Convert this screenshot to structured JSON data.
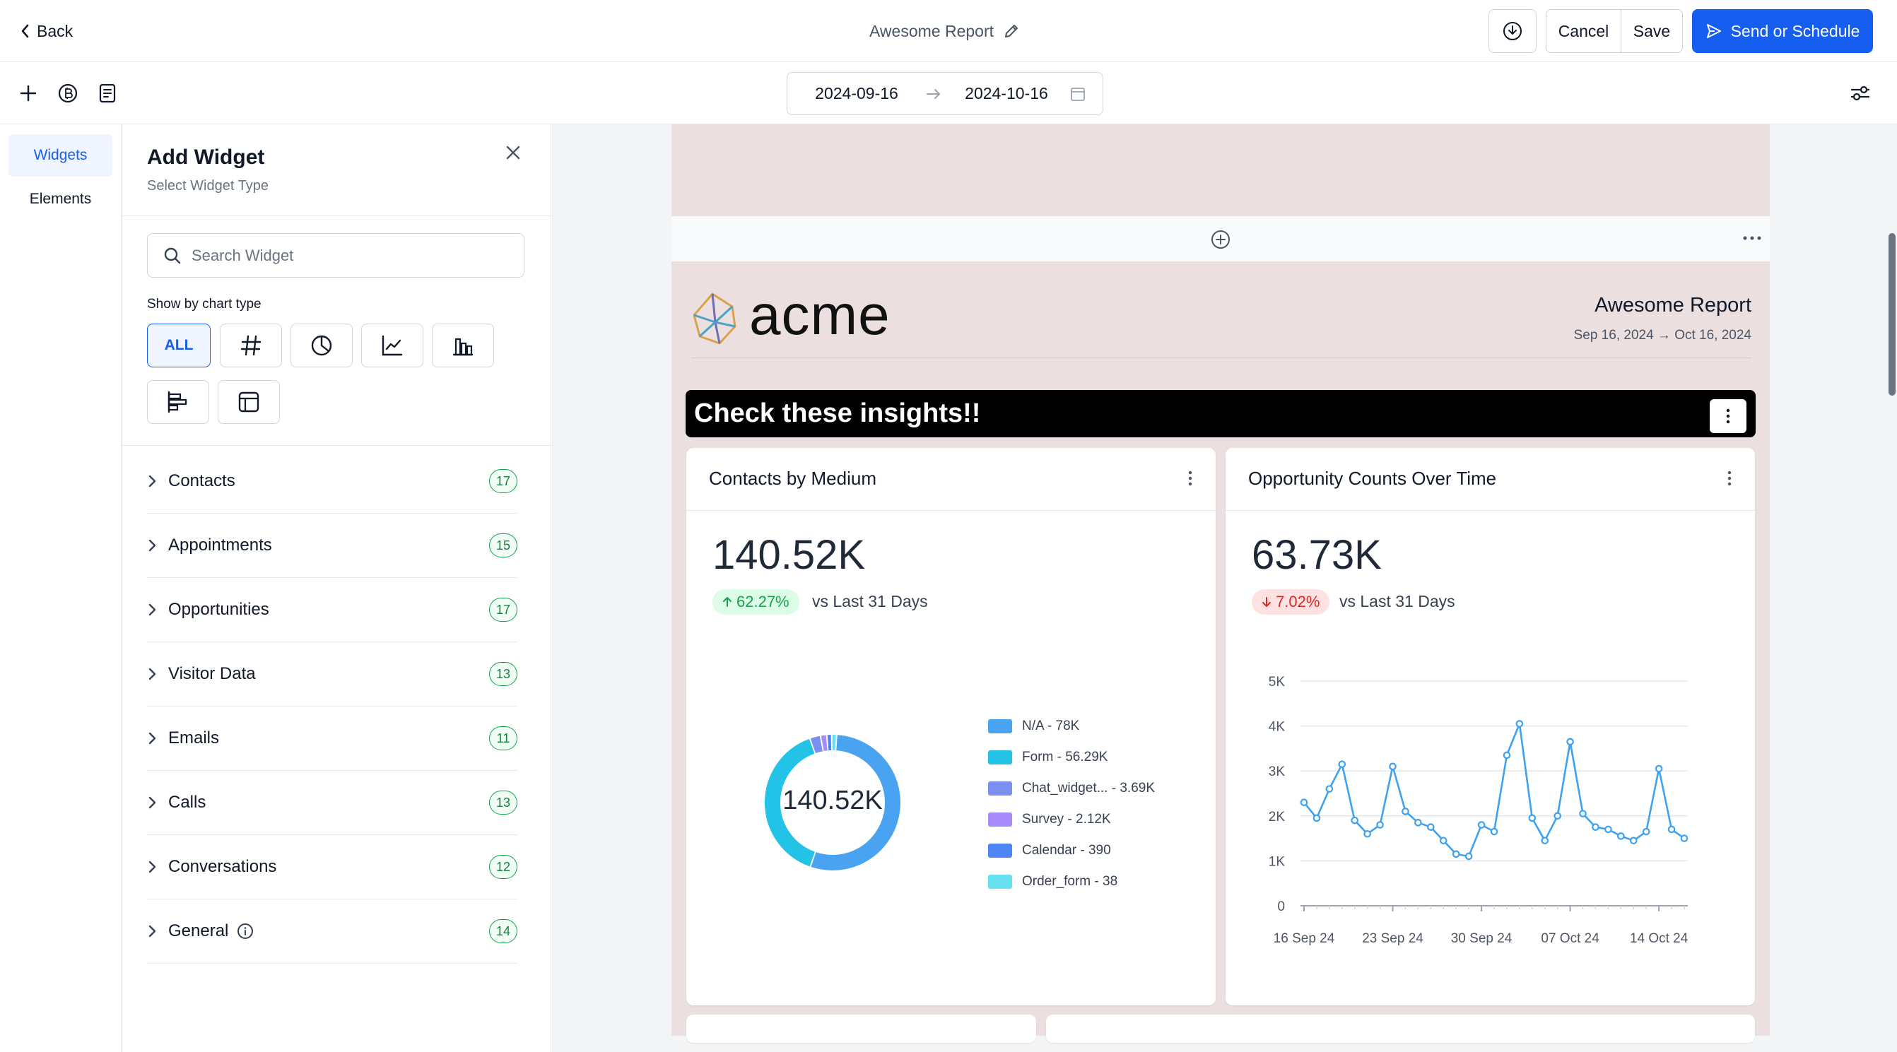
{
  "header": {
    "back_label": "Back",
    "title": "Awesome Report",
    "download_icon": "download-icon",
    "cancel_label": "Cancel",
    "save_label": "Save",
    "send_label": "Send or Schedule"
  },
  "toolbar": {
    "icons": [
      "plus-icon",
      "currency-icon",
      "document-icon"
    ],
    "start_date": "2024-09-16",
    "end_date": "2024-10-16",
    "settings_icon": "sliders-icon"
  },
  "rail": {
    "items": [
      {
        "label": "Widgets",
        "active": true
      },
      {
        "label": "Elements",
        "active": false
      }
    ]
  },
  "panel": {
    "title": "Add Widget",
    "subtitle": "Select Widget Type",
    "search_placeholder": "Search Widget",
    "filter_label": "Show by chart type",
    "chips": [
      {
        "label": "ALL",
        "icon": "",
        "active": true
      },
      {
        "label": "",
        "icon": "hash-icon",
        "active": false
      },
      {
        "label": "",
        "icon": "pie-chart-icon",
        "active": false
      },
      {
        "label": "",
        "icon": "line-chart-icon",
        "active": false
      },
      {
        "label": "",
        "icon": "bar-chart-icon",
        "active": false
      },
      {
        "label": "",
        "icon": "horizontal-bar-icon",
        "active": false
      },
      {
        "label": "",
        "icon": "table-icon",
        "active": false
      }
    ],
    "categories": [
      {
        "name": "Contacts",
        "count": "17"
      },
      {
        "name": "Appointments",
        "count": "15"
      },
      {
        "name": "Opportunities",
        "count": "17"
      },
      {
        "name": "Visitor Data",
        "count": "13"
      },
      {
        "name": "Emails",
        "count": "11"
      },
      {
        "name": "Calls",
        "count": "13"
      },
      {
        "name": "Conversations",
        "count": "12"
      },
      {
        "name": "General",
        "count": "14",
        "info": true
      }
    ]
  },
  "report": {
    "brand": "acme",
    "title": "Awesome Report",
    "date_range": "Sep 16, 2024 → Oct 16, 2024",
    "banner": "Check these insights!!",
    "widgets": [
      {
        "title": "Contacts by Medium",
        "value": "140.52K",
        "delta": "62.27%",
        "delta_dir": "up",
        "compare": "vs Last 31 Days",
        "center_label": "140.52K"
      },
      {
        "title": "Opportunity Counts Over Time",
        "value": "63.73K",
        "delta": "7.02%",
        "delta_dir": "down",
        "compare": "vs Last 31 Days"
      }
    ]
  },
  "colors": {
    "primary": "#155eef",
    "page_bg": "#ecdfe0",
    "up": "#16a34a",
    "down": "#dc2626",
    "line": "#3ea2f0"
  },
  "chart_data": [
    {
      "type": "pie",
      "labels": [
        "N/A",
        "Form",
        "Chat_widget...",
        "Survey",
        "Calendar",
        "Order_form"
      ],
      "legend_text": [
        "N/A - 78K",
        "Form - 56.29K",
        "Chat_widget... - 3.69K",
        "Survey - 2.12K",
        "Calendar - 390",
        "Order_form - 38"
      ],
      "values": [
        78000,
        56290,
        3690,
        2120,
        390,
        38
      ],
      "colors": [
        "#4aa3f0",
        "#22c3e6",
        "#7b8ff0",
        "#a78bfa",
        "#4f86f7",
        "#67e0f0"
      ],
      "center_label": "140.52K",
      "legend": "right"
    },
    {
      "type": "line",
      "x": [
        "2024-09-16",
        "2024-09-17",
        "2024-09-18",
        "2024-09-19",
        "2024-09-20",
        "2024-09-21",
        "2024-09-22",
        "2024-09-23",
        "2024-09-24",
        "2024-09-25",
        "2024-09-26",
        "2024-09-27",
        "2024-09-28",
        "2024-09-29",
        "2024-09-30",
        "2024-10-01",
        "2024-10-02",
        "2024-10-03",
        "2024-10-04",
        "2024-10-05",
        "2024-10-06",
        "2024-10-07",
        "2024-10-08",
        "2024-10-09",
        "2024-10-10",
        "2024-10-11",
        "2024-10-12",
        "2024-10-13",
        "2024-10-14",
        "2024-10-15",
        "2024-10-16"
      ],
      "values": [
        2300,
        1950,
        2600,
        3150,
        1900,
        1600,
        1800,
        3100,
        2100,
        1850,
        1750,
        1450,
        1150,
        1100,
        1800,
        1650,
        3350,
        4050,
        1950,
        1450,
        2000,
        3650,
        2050,
        1750,
        1700,
        1550,
        1450,
        1650,
        3050,
        1700,
        1500
      ],
      "x_tick_labels": [
        "16 Sep 24",
        "23 Sep 24",
        "30 Sep 24",
        "07 Oct 24",
        "14 Oct 24"
      ],
      "y_tick_labels": [
        "0",
        "1K",
        "2K",
        "3K",
        "4K",
        "5K"
      ],
      "ylim": [
        0,
        5000
      ],
      "grid": true
    }
  ]
}
